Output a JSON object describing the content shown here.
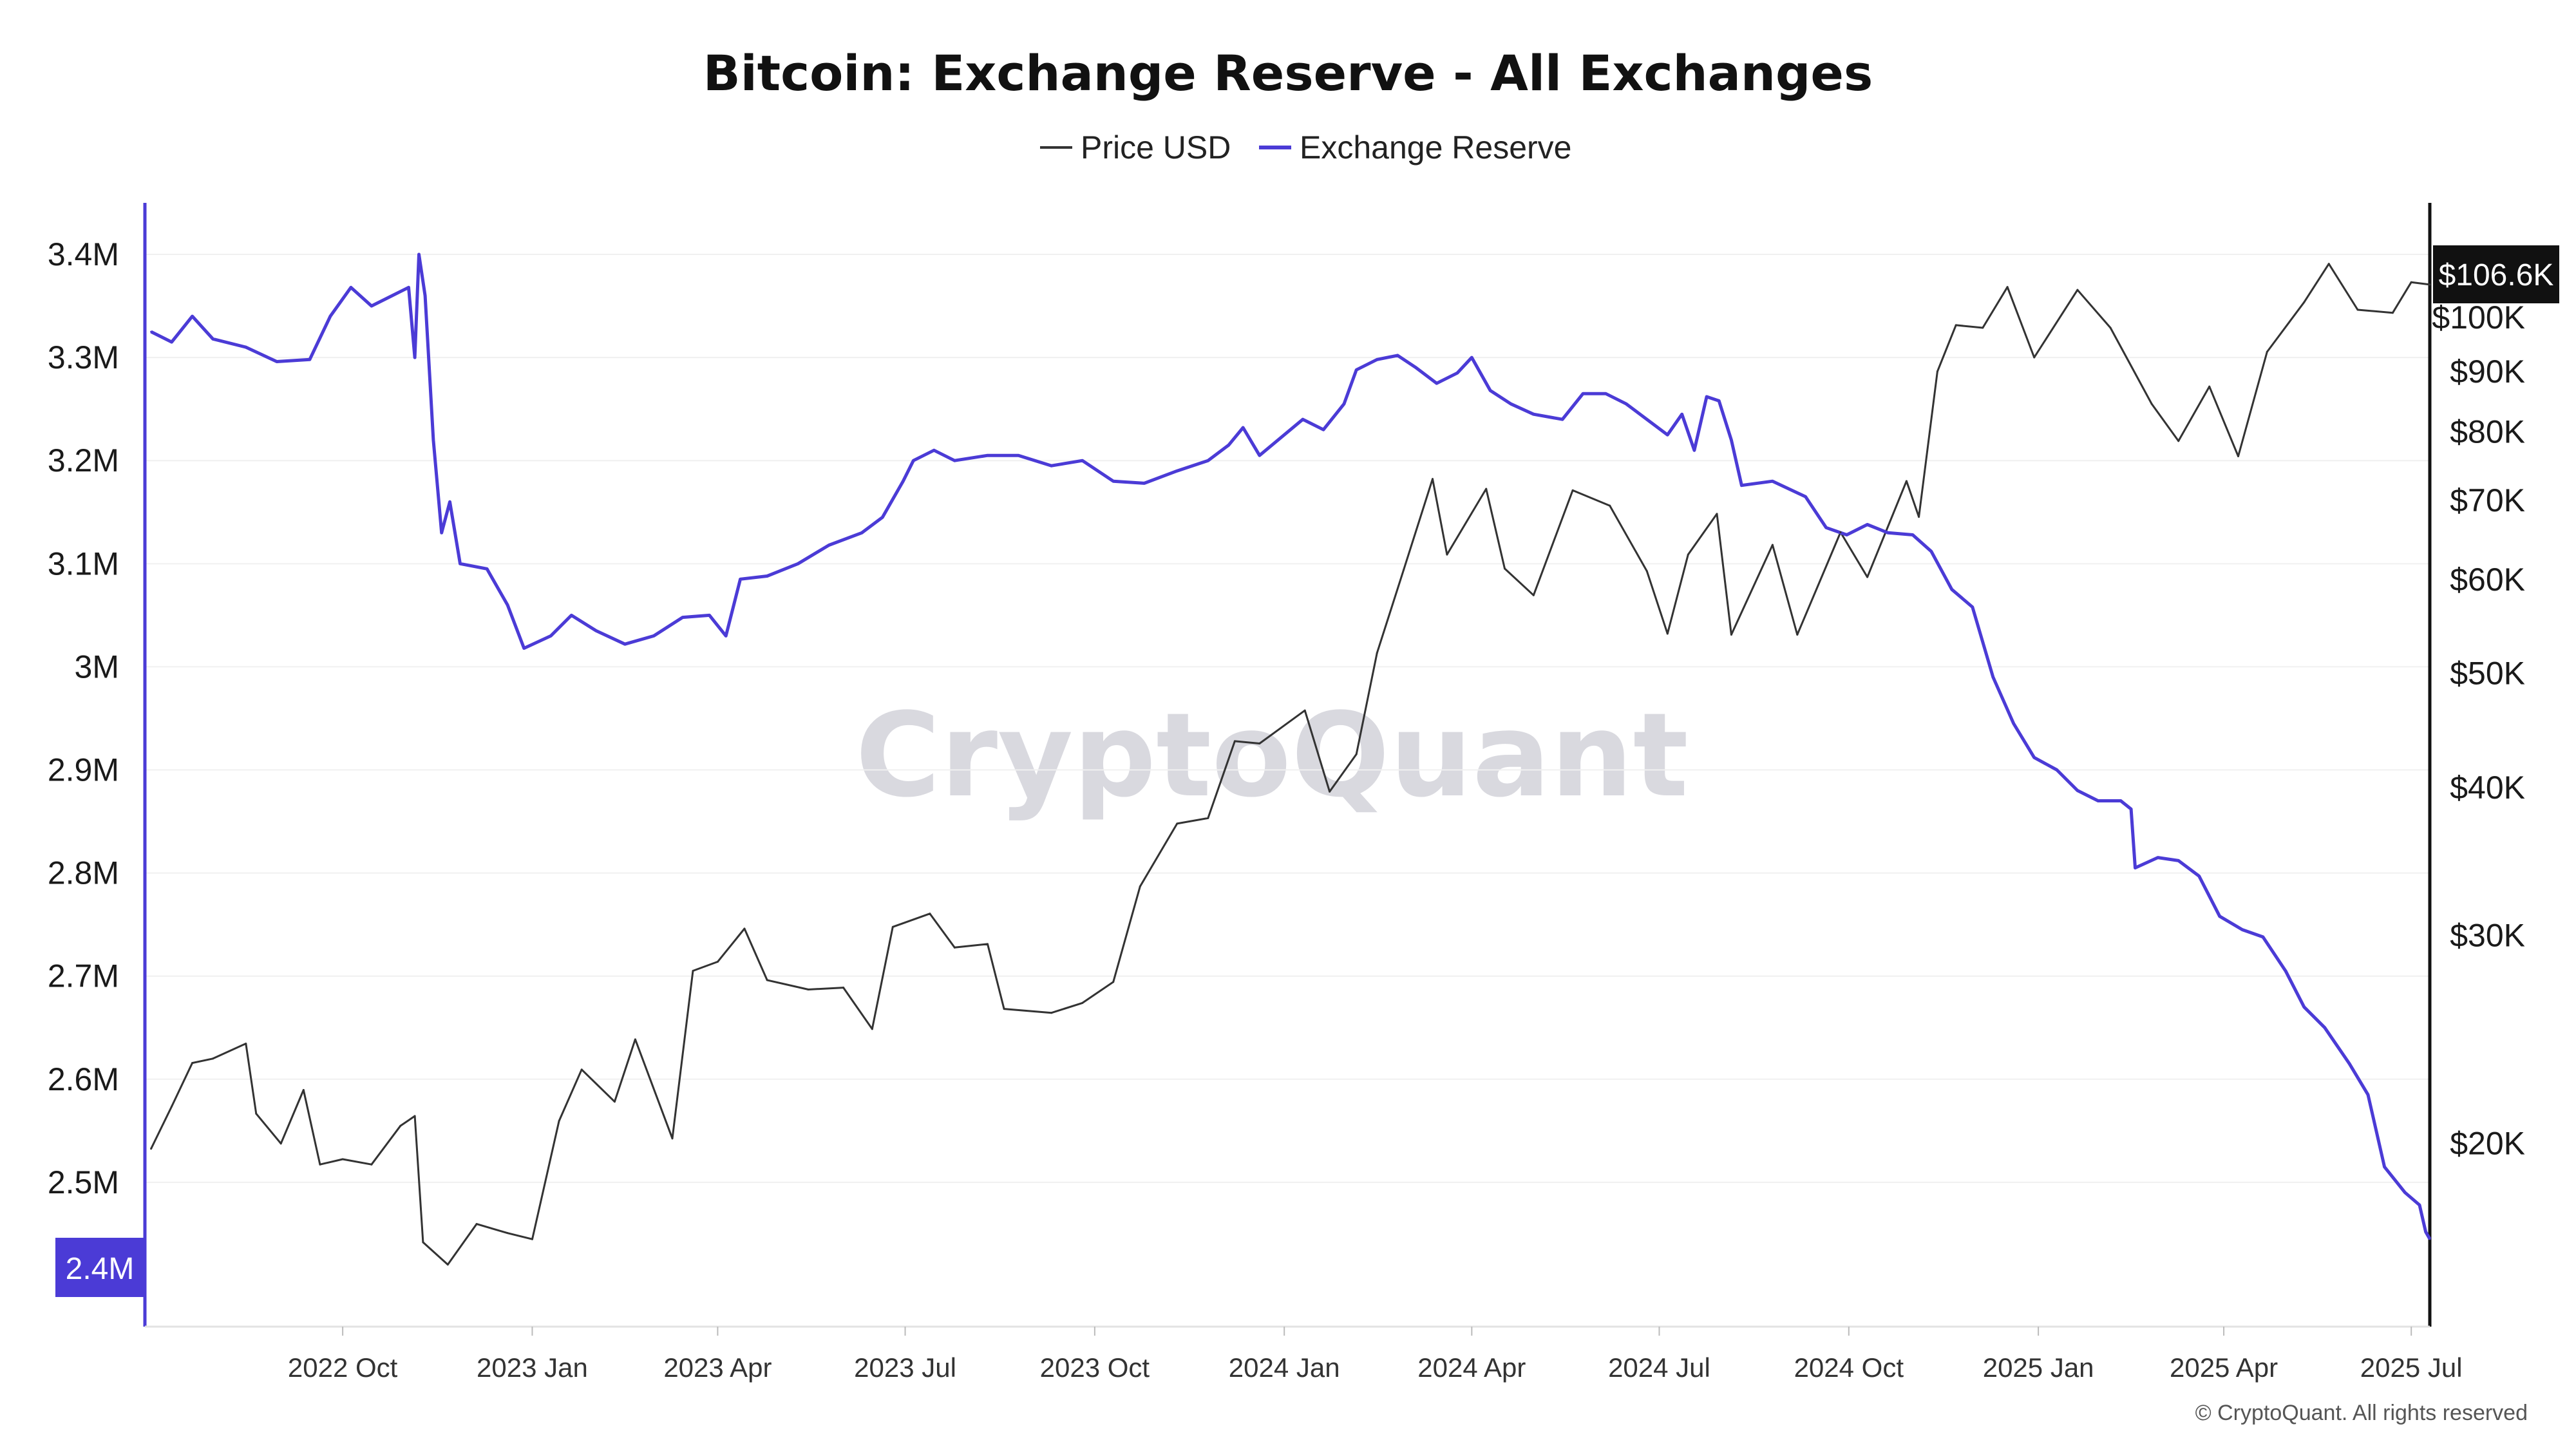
{
  "chart_data": {
    "type": "line",
    "title": "Bitcoin: Exchange Reserve - All Exchanges",
    "watermark": "CryptoQuant",
    "copyright": "© CryptoQuant. All rights reserved",
    "legend": [
      {
        "name": "Price USD",
        "color": "#333333"
      },
      {
        "name": "Exchange Reserve",
        "color": "#4b3bd6"
      }
    ],
    "legend_placement": "top-center",
    "grid": true,
    "x_ticks": [
      "2022 Oct",
      "2023 Jan",
      "2023 Apr",
      "2023 Jul",
      "2023 Oct",
      "2024 Jan",
      "2024 Apr",
      "2024 Jul",
      "2024 Oct",
      "2025 Jan",
      "2025 Apr",
      "2025 Jul"
    ],
    "x_tick_dates": [
      "2022-10-01",
      "2023-01-01",
      "2023-04-01",
      "2023-07-01",
      "2023-10-01",
      "2024-01-01",
      "2024-04-01",
      "2024-07-01",
      "2024-10-01",
      "2025-01-01",
      "2025-04-01",
      "2025-07-01"
    ],
    "x_range": [
      "2022-06-27",
      "2025-07-10"
    ],
    "left_axis": {
      "name": "Exchange Reserve",
      "range": [
        2360000,
        3450000
      ],
      "ticks": [
        {
          "value": 3400000,
          "label": "3.4M"
        },
        {
          "value": 3300000,
          "label": "3.3M"
        },
        {
          "value": 3200000,
          "label": "3.2M"
        },
        {
          "value": 3100000,
          "label": "3.1M"
        },
        {
          "value": 3000000,
          "label": "3M"
        },
        {
          "value": 2900000,
          "label": "2.9M"
        },
        {
          "value": 2800000,
          "label": "2.8M"
        },
        {
          "value": 2700000,
          "label": "2.7M"
        },
        {
          "value": 2600000,
          "label": "2.6M"
        },
        {
          "value": 2500000,
          "label": "2.5M"
        }
      ],
      "current_label": "2.4M",
      "current_value": 2445000
    },
    "right_axis": {
      "name": "Price USD",
      "scale": "log",
      "range": [
        14000,
        125000
      ],
      "ticks": [
        {
          "value": 100000,
          "label": "$100K"
        },
        {
          "value": 90000,
          "label": "$90K"
        },
        {
          "value": 80000,
          "label": "$80K"
        },
        {
          "value": 70000,
          "label": "$70K"
        },
        {
          "value": 60000,
          "label": "$60K"
        },
        {
          "value": 50000,
          "label": "$50K"
        },
        {
          "value": 40000,
          "label": "$40K"
        },
        {
          "value": 30000,
          "label": "$30K"
        },
        {
          "value": 20000,
          "label": "$20K"
        }
      ],
      "current_label": "$106.6K",
      "current_value": 106600
    },
    "series": [
      {
        "name": "Exchange Reserve",
        "axis": "left",
        "color": "#4b3bd6",
        "points": [
          [
            "2022-06-30",
            3325000
          ],
          [
            "2022-07-10",
            3315000
          ],
          [
            "2022-07-20",
            3340000
          ],
          [
            "2022-07-30",
            3318000
          ],
          [
            "2022-08-15",
            3310000
          ],
          [
            "2022-08-30",
            3296000
          ],
          [
            "2022-09-15",
            3298000
          ],
          [
            "2022-09-25",
            3340000
          ],
          [
            "2022-10-05",
            3368000
          ],
          [
            "2022-10-15",
            3350000
          ],
          [
            "2022-10-25",
            3360000
          ],
          [
            "2022-11-02",
            3368000
          ],
          [
            "2022-11-05",
            3300000
          ],
          [
            "2022-11-07",
            3400000
          ],
          [
            "2022-11-10",
            3360000
          ],
          [
            "2022-11-14",
            3220000
          ],
          [
            "2022-11-18",
            3130000
          ],
          [
            "2022-11-22",
            3160000
          ],
          [
            "2022-11-27",
            3100000
          ],
          [
            "2022-12-10",
            3095000
          ],
          [
            "2022-12-20",
            3060000
          ],
          [
            "2022-12-28",
            3018000
          ],
          [
            "2023-01-10",
            3030000
          ],
          [
            "2023-01-20",
            3050000
          ],
          [
            "2023-02-01",
            3035000
          ],
          [
            "2023-02-15",
            3022000
          ],
          [
            "2023-03-01",
            3030000
          ],
          [
            "2023-03-15",
            3048000
          ],
          [
            "2023-03-28",
            3050000
          ],
          [
            "2023-04-05",
            3030000
          ],
          [
            "2023-04-12",
            3085000
          ],
          [
            "2023-04-25",
            3088000
          ],
          [
            "2023-05-10",
            3100000
          ],
          [
            "2023-05-25",
            3118000
          ],
          [
            "2023-06-10",
            3130000
          ],
          [
            "2023-06-20",
            3145000
          ],
          [
            "2023-06-30",
            3180000
          ],
          [
            "2023-07-05",
            3200000
          ],
          [
            "2023-07-15",
            3210000
          ],
          [
            "2023-07-25",
            3200000
          ],
          [
            "2023-08-10",
            3205000
          ],
          [
            "2023-08-25",
            3205000
          ],
          [
            "2023-09-10",
            3195000
          ],
          [
            "2023-09-25",
            3200000
          ],
          [
            "2023-10-10",
            3180000
          ],
          [
            "2023-10-25",
            3178000
          ],
          [
            "2023-11-10",
            3190000
          ],
          [
            "2023-11-25",
            3200000
          ],
          [
            "2023-12-05",
            3215000
          ],
          [
            "2023-12-12",
            3232000
          ],
          [
            "2023-12-20",
            3205000
          ],
          [
            "2024-01-01",
            3225000
          ],
          [
            "2024-01-10",
            3240000
          ],
          [
            "2024-01-20",
            3230000
          ],
          [
            "2024-01-30",
            3255000
          ],
          [
            "2024-02-05",
            3288000
          ],
          [
            "2024-02-15",
            3298000
          ],
          [
            "2024-02-25",
            3302000
          ],
          [
            "2024-03-05",
            3290000
          ],
          [
            "2024-03-15",
            3275000
          ],
          [
            "2024-03-25",
            3285000
          ],
          [
            "2024-04-01",
            3300000
          ],
          [
            "2024-04-10",
            3268000
          ],
          [
            "2024-04-20",
            3255000
          ],
          [
            "2024-05-01",
            3245000
          ],
          [
            "2024-05-15",
            3240000
          ],
          [
            "2024-05-25",
            3265000
          ],
          [
            "2024-06-05",
            3265000
          ],
          [
            "2024-06-15",
            3255000
          ],
          [
            "2024-06-25",
            3240000
          ],
          [
            "2024-07-05",
            3225000
          ],
          [
            "2024-07-12",
            3245000
          ],
          [
            "2024-07-18",
            3210000
          ],
          [
            "2024-07-24",
            3262000
          ],
          [
            "2024-07-30",
            3258000
          ],
          [
            "2024-08-05",
            3220000
          ],
          [
            "2024-08-10",
            3176000
          ],
          [
            "2024-08-25",
            3180000
          ],
          [
            "2024-09-10",
            3165000
          ],
          [
            "2024-09-20",
            3135000
          ],
          [
            "2024-09-30",
            3128000
          ],
          [
            "2024-10-10",
            3138000
          ],
          [
            "2024-10-20",
            3130000
          ],
          [
            "2024-11-01",
            3128000
          ],
          [
            "2024-11-10",
            3112000
          ],
          [
            "2024-11-20",
            3075000
          ],
          [
            "2024-11-30",
            3058000
          ],
          [
            "2024-12-10",
            2990000
          ],
          [
            "2024-12-20",
            2945000
          ],
          [
            "2024-12-30",
            2912000
          ],
          [
            "2025-01-10",
            2900000
          ],
          [
            "2025-01-20",
            2880000
          ],
          [
            "2025-01-30",
            2870000
          ],
          [
            "2025-02-10",
            2870000
          ],
          [
            "2025-02-15",
            2862000
          ],
          [
            "2025-02-17",
            2805000
          ],
          [
            "2025-02-28",
            2815000
          ],
          [
            "2025-03-10",
            2812000
          ],
          [
            "2025-03-20",
            2797000
          ],
          [
            "2025-03-30",
            2758000
          ],
          [
            "2025-04-10",
            2745000
          ],
          [
            "2025-04-20",
            2738000
          ],
          [
            "2025-05-01",
            2705000
          ],
          [
            "2025-05-10",
            2670000
          ],
          [
            "2025-05-20",
            2650000
          ],
          [
            "2025-06-01",
            2615000
          ],
          [
            "2025-06-10",
            2585000
          ],
          [
            "2025-06-18",
            2515000
          ],
          [
            "2025-06-28",
            2490000
          ],
          [
            "2025-07-05",
            2478000
          ],
          [
            "2025-07-08",
            2452000
          ],
          [
            "2025-07-10",
            2445000
          ]
        ]
      },
      {
        "name": "Price USD",
        "axis": "right",
        "color": "#333333",
        "points": [
          [
            "2022-06-30",
            19800
          ],
          [
            "2022-07-10",
            21500
          ],
          [
            "2022-07-20",
            23400
          ],
          [
            "2022-07-30",
            23600
          ],
          [
            "2022-08-15",
            24300
          ],
          [
            "2022-08-20",
            21200
          ],
          [
            "2022-09-01",
            20000
          ],
          [
            "2022-09-12",
            22200
          ],
          [
            "2022-09-20",
            19200
          ],
          [
            "2022-10-01",
            19400
          ],
          [
            "2022-10-15",
            19200
          ],
          [
            "2022-10-29",
            20700
          ],
          [
            "2022-11-05",
            21100
          ],
          [
            "2022-11-09",
            16500
          ],
          [
            "2022-11-21",
            15800
          ],
          [
            "2022-12-05",
            17100
          ],
          [
            "2022-12-20",
            16800
          ],
          [
            "2023-01-01",
            16600
          ],
          [
            "2023-01-14",
            20900
          ],
          [
            "2023-01-25",
            23100
          ],
          [
            "2023-02-10",
            21700
          ],
          [
            "2023-02-20",
            24500
          ],
          [
            "2023-03-10",
            20200
          ],
          [
            "2023-03-20",
            28000
          ],
          [
            "2023-04-01",
            28500
          ],
          [
            "2023-04-14",
            30400
          ],
          [
            "2023-04-25",
            27500
          ],
          [
            "2023-05-15",
            27000
          ],
          [
            "2023-06-01",
            27100
          ],
          [
            "2023-06-15",
            25000
          ],
          [
            "2023-06-25",
            30500
          ],
          [
            "2023-07-13",
            31300
          ],
          [
            "2023-07-25",
            29300
          ],
          [
            "2023-08-10",
            29500
          ],
          [
            "2023-08-18",
            26000
          ],
          [
            "2023-09-10",
            25800
          ],
          [
            "2023-09-25",
            26300
          ],
          [
            "2023-10-10",
            27400
          ],
          [
            "2023-10-23",
            33000
          ],
          [
            "2023-11-10",
            37300
          ],
          [
            "2023-11-25",
            37700
          ],
          [
            "2023-12-08",
            43800
          ],
          [
            "2023-12-20",
            43600
          ],
          [
            "2024-01-11",
            46500
          ],
          [
            "2024-01-23",
            39700
          ],
          [
            "2024-02-05",
            42700
          ],
          [
            "2024-02-15",
            52000
          ],
          [
            "2024-02-28",
            61200
          ],
          [
            "2024-03-13",
            73000
          ],
          [
            "2024-03-20",
            63000
          ],
          [
            "2024-04-08",
            71600
          ],
          [
            "2024-04-17",
            61300
          ],
          [
            "2024-05-01",
            58200
          ],
          [
            "2024-05-20",
            71400
          ],
          [
            "2024-06-07",
            69300
          ],
          [
            "2024-06-25",
            61000
          ],
          [
            "2024-07-05",
            54000
          ],
          [
            "2024-07-15",
            63000
          ],
          [
            "2024-07-29",
            68200
          ],
          [
            "2024-08-05",
            53900
          ],
          [
            "2024-08-25",
            64200
          ],
          [
            "2024-09-06",
            53900
          ],
          [
            "2024-09-27",
            65800
          ],
          [
            "2024-10-10",
            60300
          ],
          [
            "2024-10-29",
            72700
          ],
          [
            "2024-11-04",
            67800
          ],
          [
            "2024-11-13",
            90000
          ],
          [
            "2024-11-22",
            98500
          ],
          [
            "2024-12-05",
            98000
          ],
          [
            "2024-12-17",
            106100
          ],
          [
            "2024-12-30",
            92500
          ],
          [
            "2025-01-20",
            105500
          ],
          [
            "2025-02-05",
            98000
          ],
          [
            "2025-02-25",
            84500
          ],
          [
            "2025-03-10",
            78600
          ],
          [
            "2025-03-25",
            87400
          ],
          [
            "2025-04-08",
            76300
          ],
          [
            "2025-04-22",
            93500
          ],
          [
            "2025-05-10",
            103000
          ],
          [
            "2025-05-22",
            111000
          ],
          [
            "2025-06-05",
            101500
          ],
          [
            "2025-06-22",
            100900
          ],
          [
            "2025-07-01",
            107100
          ],
          [
            "2025-07-10",
            106600
          ]
        ]
      }
    ]
  }
}
